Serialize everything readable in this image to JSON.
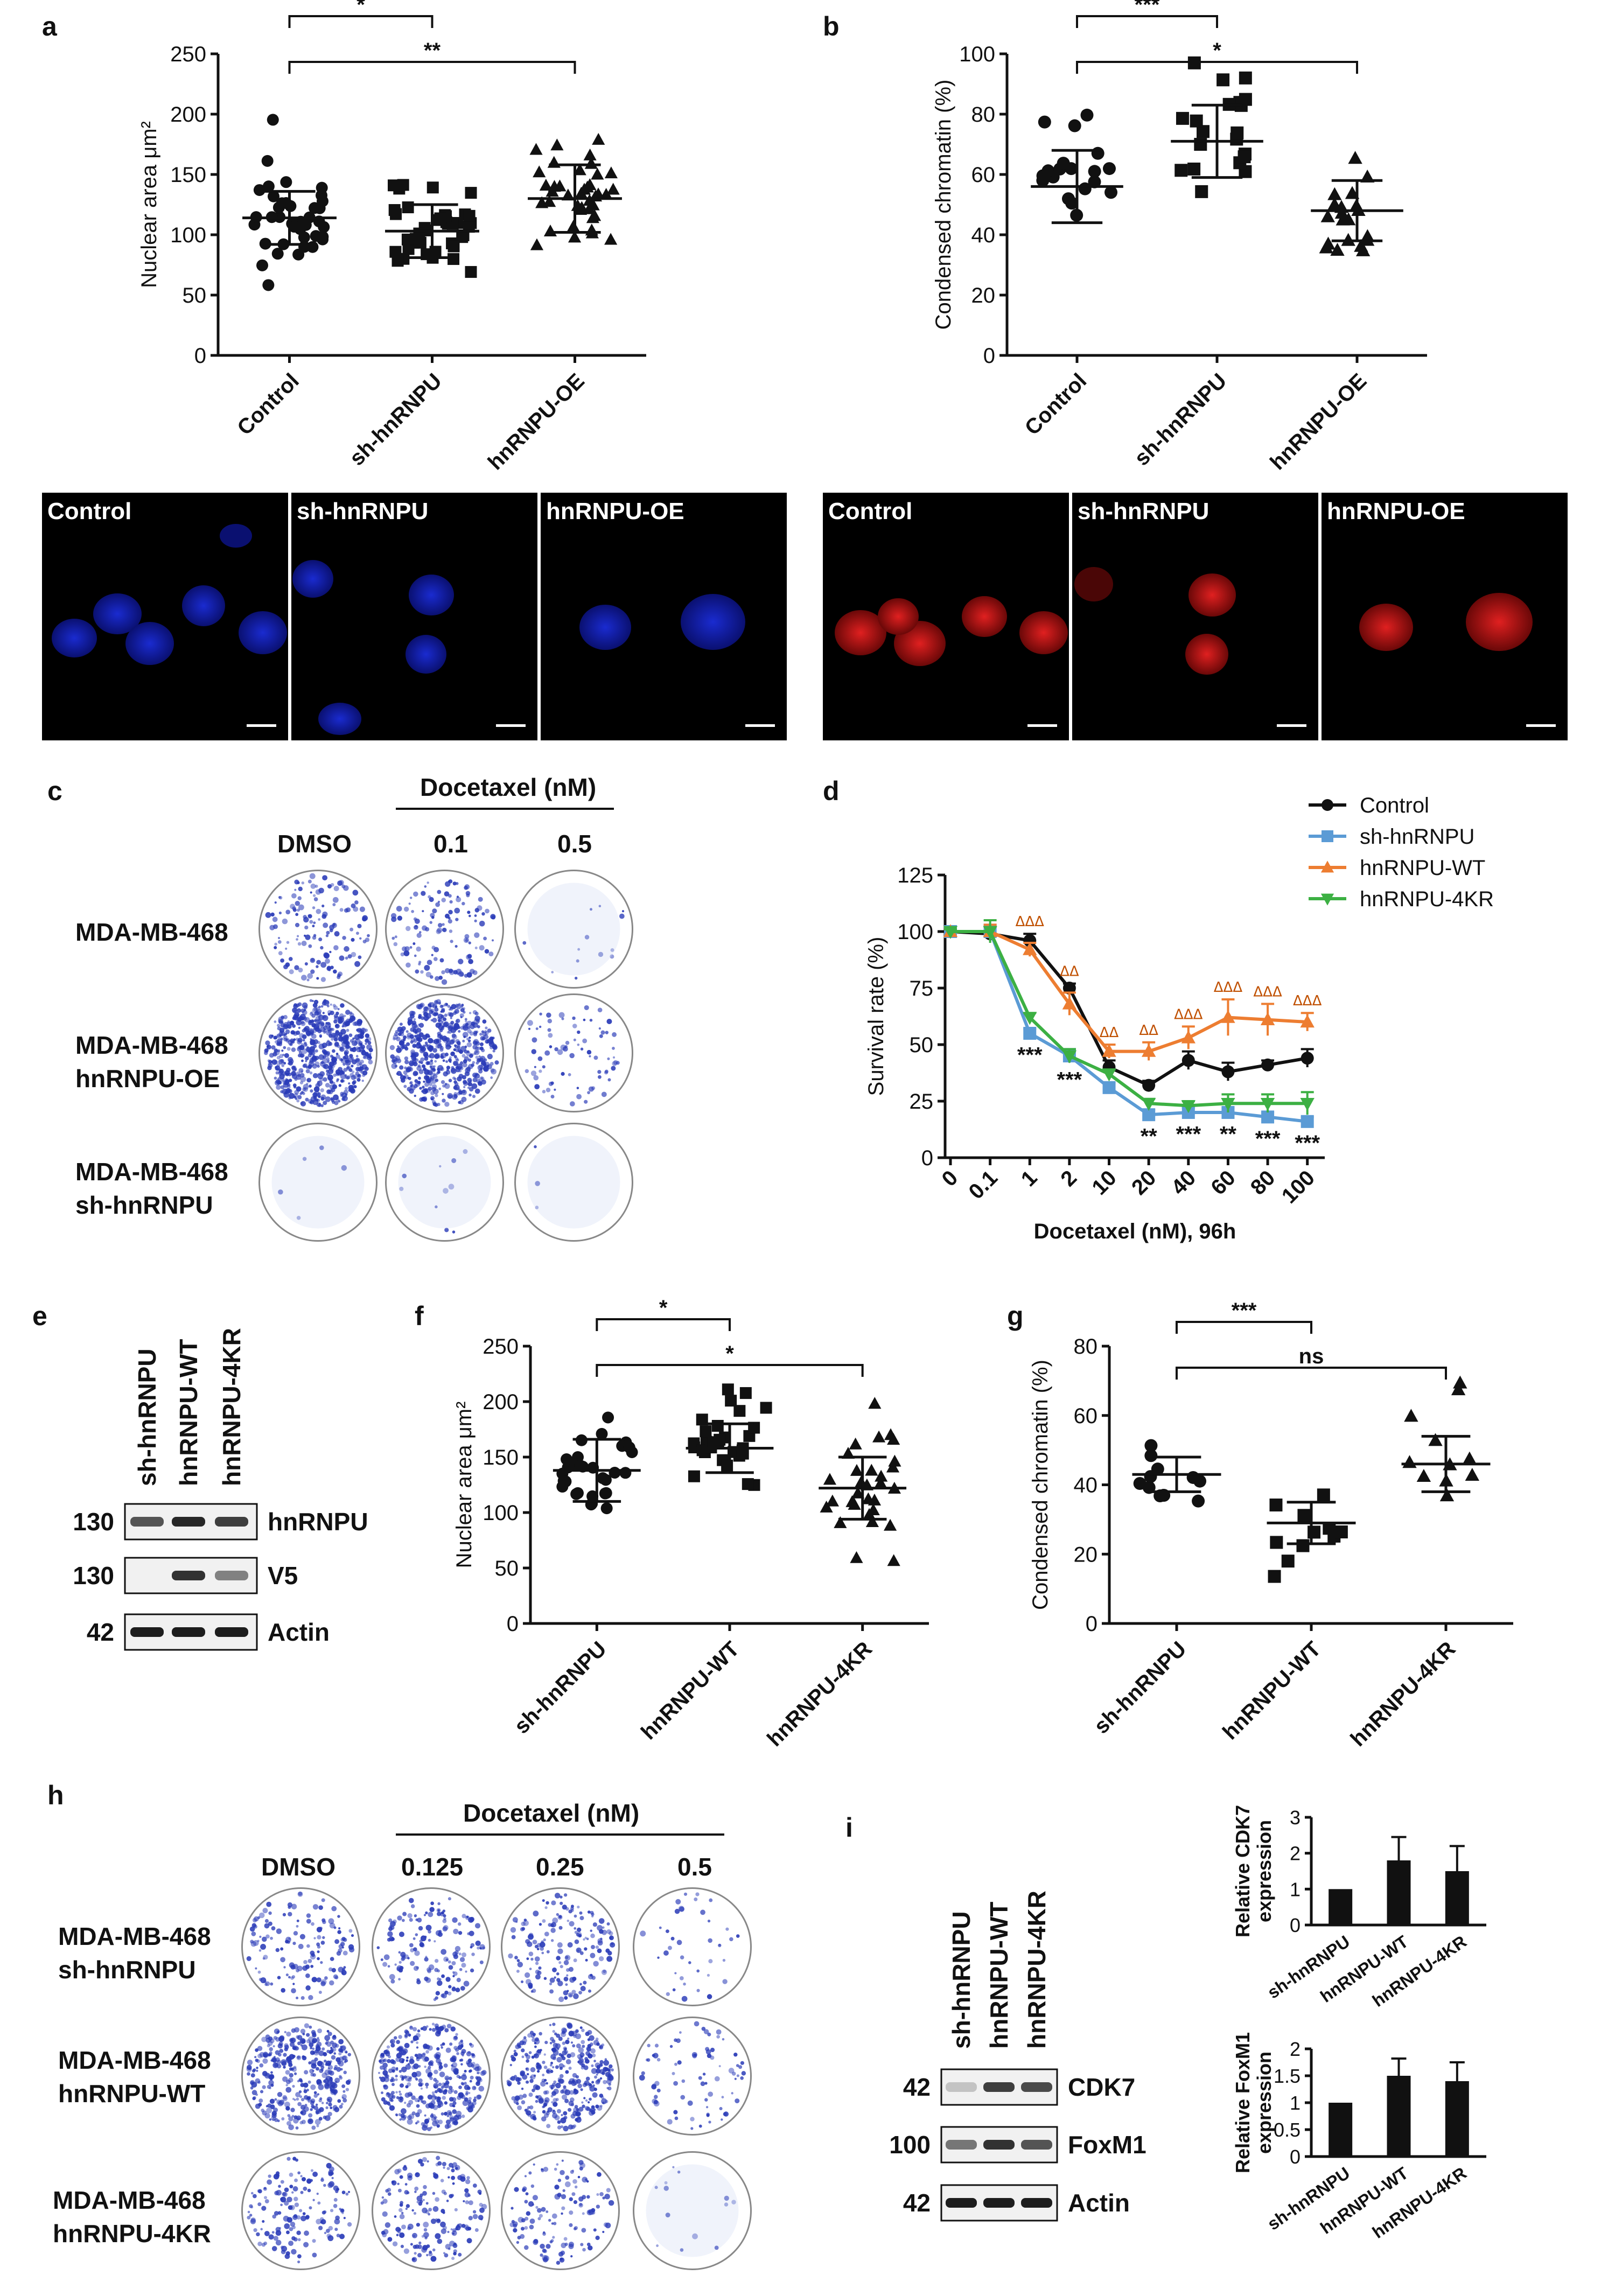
{
  "panels": {
    "a": {
      "label": "a"
    },
    "b": {
      "label": "b"
    },
    "c": {
      "label": "c"
    },
    "d": {
      "label": "d"
    },
    "e": {
      "label": "e"
    },
    "f": {
      "label": "f"
    },
    "g": {
      "label": "g"
    },
    "h": {
      "label": "h"
    },
    "i": {
      "label": "i"
    }
  },
  "micrographs": {
    "blue": [
      "Control",
      "sh-hnRNPU",
      "hnRNPU-OE"
    ],
    "red": [
      "Control",
      "sh-hnRNPU",
      "hnRNPU-OE"
    ]
  },
  "panel_c": {
    "header": "Docetaxel (nM)",
    "columns": [
      "DMSO",
      "0.1",
      "0.5"
    ],
    "rows": [
      "MDA-MB-468",
      "MDA-MB-468\nhnRNPU-OE",
      "MDA-MB-468\nsh-hnRNPU"
    ]
  },
  "panel_e": {
    "lanes": [
      "sh-hnRNPU",
      "hnRNPU-WT",
      "hnRNPU-4KR"
    ],
    "markers": [
      "130",
      "130",
      "42"
    ],
    "bands": [
      "hnRNPU",
      "V5",
      "Actin"
    ]
  },
  "panel_h": {
    "header": "Docetaxel (nM)",
    "columns": [
      "DMSO",
      "0.125",
      "0.25",
      "0.5"
    ],
    "rows": [
      "MDA-MB-468\nsh-hnRNPU",
      "MDA-MB-468\nhnRNPU-WT",
      "MDA-MB-468\nhnRNPU-4KR"
    ]
  },
  "panel_i_blot": {
    "lanes": [
      "sh-hnRNPU",
      "hnRNPU-WT",
      "hnRNPU-4KR"
    ],
    "markers": [
      "42",
      "100",
      "42"
    ],
    "bands": [
      "CDK7",
      "FoxM1",
      "Actin"
    ]
  },
  "chart_data": [
    {
      "id": "a",
      "type": "scatter",
      "ylabel": "Nuclear area μm²",
      "categories": [
        "Control",
        "sh-hnRNPU",
        "hnRNPU-OE"
      ],
      "ylim": [
        0,
        250
      ],
      "yticks": [
        0,
        50,
        100,
        150,
        200,
        250
      ],
      "markers": [
        "circle",
        "square",
        "triangle"
      ],
      "means": [
        114,
        103,
        130
      ],
      "sd": [
        22,
        22,
        28
      ],
      "significance": [
        {
          "from": 0,
          "to": 1,
          "label": "*"
        },
        {
          "from": 0,
          "to": 2,
          "label": "**"
        }
      ]
    },
    {
      "id": "b",
      "type": "scatter",
      "ylabel": "Condensed chromatin (%)",
      "categories": [
        "Control",
        "sh-hnRNPU",
        "hnRNPU-OE"
      ],
      "ylim": [
        0,
        100
      ],
      "yticks": [
        0,
        20,
        40,
        60,
        80,
        100
      ],
      "markers": [
        "circle",
        "square",
        "triangle"
      ],
      "means": [
        56,
        71,
        48
      ],
      "sd": [
        12,
        12,
        10
      ],
      "significance": [
        {
          "from": 0,
          "to": 1,
          "label": "***"
        },
        {
          "from": 0,
          "to": 2,
          "label": "*"
        }
      ]
    },
    {
      "id": "d",
      "type": "line",
      "xlabel": "Docetaxel (nM), 96h",
      "ylabel": "Survival rate (%)",
      "categories": [
        "0",
        "0.1",
        "1",
        "2",
        "10",
        "20",
        "40",
        "60",
        "80",
        "100"
      ],
      "ylim": [
        0,
        125
      ],
      "yticks": [
        0,
        25,
        50,
        75,
        100,
        125
      ],
      "series": [
        {
          "name": "Control",
          "color": "#111111",
          "marker": "circle",
          "values": [
            100,
            99,
            96,
            75,
            40,
            32,
            43,
            38,
            41,
            44
          ],
          "err": [
            1,
            3,
            3,
            2,
            3,
            2,
            4,
            4,
            2,
            4
          ]
        },
        {
          "name": "sh-hnRNPU",
          "color": "#5b9bd5",
          "marker": "square",
          "values": [
            100,
            100,
            55,
            45,
            31,
            19,
            20,
            20,
            18,
            16
          ],
          "err": [
            1,
            3,
            2,
            3,
            2,
            2,
            2,
            2,
            2,
            2
          ]
        },
        {
          "name": "hnRNPU-WT",
          "color": "#ed7d31",
          "marker": "triangle",
          "values": [
            100,
            100,
            92,
            68,
            47,
            47,
            53,
            62,
            61,
            60
          ],
          "err": [
            1,
            3,
            3,
            5,
            3,
            4,
            5,
            8,
            7,
            4
          ]
        },
        {
          "name": "hnRNPU-4KR",
          "color": "#3cb043",
          "marker": "triangle-down",
          "values": [
            100,
            100,
            62,
            45,
            37,
            24,
            23,
            24,
            24,
            24
          ],
          "err": [
            1,
            5,
            2,
            3,
            2,
            2,
            2,
            4,
            4,
            5
          ]
        }
      ],
      "annotations_top": [
        "",
        "",
        "ΔΔΔ",
        "ΔΔ",
        "ΔΔ",
        "ΔΔ",
        "ΔΔΔ",
        "ΔΔΔ",
        "ΔΔΔ",
        "ΔΔΔ"
      ],
      "annotations_bottom": [
        "",
        "",
        "***",
        "***",
        "",
        "**",
        "***",
        "**",
        "***",
        "***"
      ]
    },
    {
      "id": "f",
      "type": "scatter",
      "ylabel": "Nuclear area μm²",
      "categories": [
        "sh-hnRNPU",
        "hnRNPU-WT",
        "hnRNPU-4KR"
      ],
      "ylim": [
        0,
        250
      ],
      "yticks": [
        0,
        50,
        100,
        150,
        200,
        250
      ],
      "markers": [
        "circle",
        "square",
        "triangle"
      ],
      "means": [
        138,
        158,
        122
      ],
      "sd": [
        28,
        22,
        28
      ],
      "significance": [
        {
          "from": 0,
          "to": 1,
          "label": "*"
        },
        {
          "from": 0,
          "to": 2,
          "label": "*"
        }
      ]
    },
    {
      "id": "g",
      "type": "scatter",
      "ylabel": "Condensed chromatin (%)",
      "categories": [
        "sh-hnRNPU",
        "hnRNPU-WT",
        "hnRNPU-4KR"
      ],
      "ylim": [
        0,
        80
      ],
      "yticks": [
        0,
        20,
        40,
        60,
        80
      ],
      "markers": [
        "circle",
        "square",
        "triangle"
      ],
      "means": [
        43,
        29,
        46
      ],
      "sd": [
        5,
        6,
        8
      ],
      "significance": [
        {
          "from": 0,
          "to": 1,
          "label": "***"
        },
        {
          "from": 0,
          "to": 2,
          "label": "ns"
        }
      ]
    },
    {
      "id": "i1",
      "type": "bar",
      "ylabel": "Relative CDK7 expression",
      "categories": [
        "sh-hnRNPU",
        "hnRNPU-WT",
        "hnRNPU-4KR"
      ],
      "values": [
        1,
        1.8,
        1.5
      ],
      "err": [
        0,
        0.65,
        0.7
      ],
      "ylim": [
        0,
        3
      ],
      "yticks": [
        0,
        1,
        2,
        3
      ]
    },
    {
      "id": "i2",
      "type": "bar",
      "ylabel": "Relative FoxM1 expression",
      "categories": [
        "sh-hnRNPU",
        "hnRNPU-WT",
        "hnRNPU-4KR"
      ],
      "values": [
        1,
        1.5,
        1.4
      ],
      "err": [
        0,
        0.32,
        0.35
      ],
      "ylim": [
        0,
        2
      ],
      "yticks": [
        0,
        0.5,
        1,
        1.5,
        2
      ]
    }
  ]
}
